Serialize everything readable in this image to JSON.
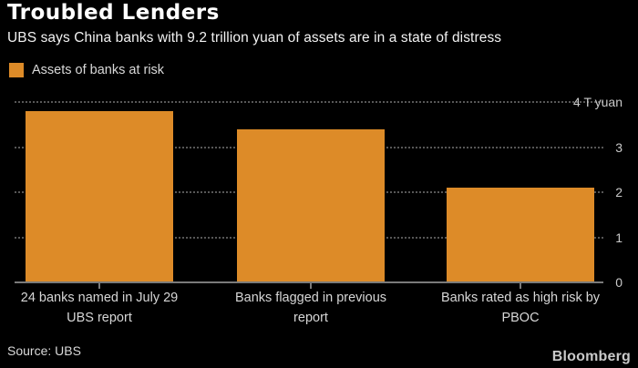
{
  "header": {
    "title": "Troubled Lenders",
    "subtitle": "UBS says China banks with 9.2 trillion yuan of assets are in a state of distress"
  },
  "legend": {
    "label": "Assets of banks at risk"
  },
  "chart_data": {
    "type": "bar",
    "title": "Troubled Lenders",
    "subtitle": "UBS says China banks with 9.2 trillion yuan of assets are in a state of distress",
    "series_name": "Assets of banks at risk",
    "categories": [
      {
        "label": "24 banks named in July 29 UBS report",
        "lines": [
          "24 banks named in July 29",
          "UBS report"
        ]
      },
      {
        "label": "Banks flagged in previous report",
        "lines": [
          "Banks flagged in previous",
          "report"
        ]
      },
      {
        "label": "Banks rated as high risk by PBOC",
        "lines": [
          "Banks rated as high risk by",
          "PBOC"
        ]
      }
    ],
    "values": [
      3.8,
      3.4,
      2.1
    ],
    "unit": "T yuan",
    "ylim": [
      0,
      4
    ],
    "yticks": [
      0,
      1,
      2,
      3,
      4
    ],
    "ytick_labels": [
      "0",
      "1",
      "2",
      "3",
      "4 T yuan"
    ],
    "grid": "horizontal-dotted",
    "legend_position": "top-left",
    "y_axis_side": "right"
  },
  "colors": {
    "background": "#000000",
    "bar": "#dd8b28",
    "grid": "#575757",
    "axis": "#7a7a7a",
    "title_text": "#ffffff",
    "muted_text": "#d6d6d6"
  },
  "footer": {
    "source": "Source: UBS",
    "brand": "Bloomberg"
  }
}
